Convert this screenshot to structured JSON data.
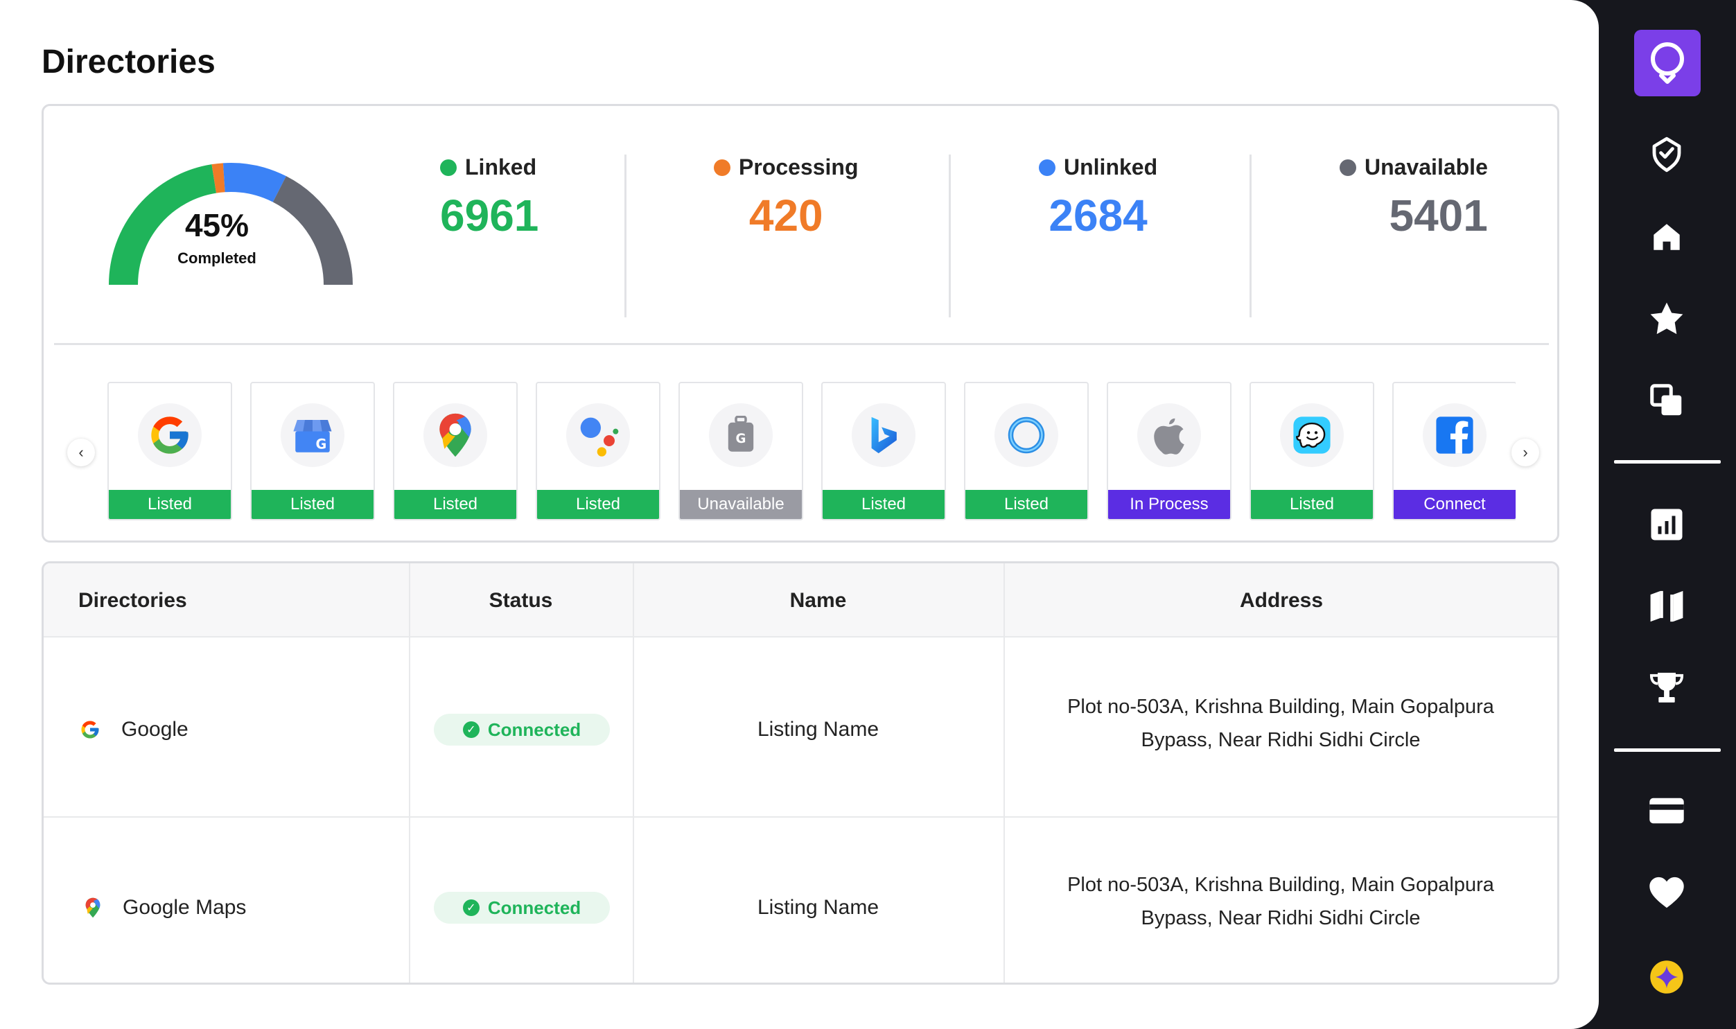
{
  "page": {
    "title": "Directories"
  },
  "colors": {
    "green": "#1fb45a",
    "orange": "#f07b28",
    "blue": "#3b82f6",
    "gray": "#656872",
    "purple": "#5b2de3",
    "unavailable_gray": "#9a9ba3"
  },
  "progress": {
    "percent_value": 45,
    "percent": "45%",
    "label": "Completed",
    "segments": [
      {
        "name": "Linked",
        "share": 0.45,
        "color": "#1fb45a"
      },
      {
        "name": "Processing",
        "share": 0.03,
        "color": "#f07b28"
      },
      {
        "name": "Unlinked",
        "share": 0.17,
        "color": "#3b82f6"
      },
      {
        "name": "Unavailable",
        "share": 0.35,
        "color": "#656872"
      }
    ]
  },
  "stats": [
    {
      "label": "Linked",
      "value": "6961",
      "color": "#1fb45a"
    },
    {
      "label": "Processing",
      "value": "420",
      "color": "#f07b28"
    },
    {
      "label": "Unlinked",
      "value": "2684",
      "color": "#3b82f6"
    },
    {
      "label": "Unavailable",
      "value": "5401",
      "color": "#656872"
    }
  ],
  "carousel": {
    "prev_icon": "chevron-left-icon",
    "next_icon": "chevron-right-icon",
    "tiles": [
      {
        "icon": "google-icon",
        "status": "Listed",
        "color": "#1fb45a"
      },
      {
        "icon": "google-business-icon",
        "status": "Listed",
        "color": "#1fb45a"
      },
      {
        "icon": "google-maps-icon",
        "status": "Listed",
        "color": "#1fb45a"
      },
      {
        "icon": "google-assistant-icon",
        "status": "Listed",
        "color": "#1fb45a"
      },
      {
        "icon": "luggage-icon",
        "status": "Unavailable",
        "color": "#9a9ba3"
      },
      {
        "icon": "bing-icon",
        "status": "Listed",
        "color": "#1fb45a"
      },
      {
        "icon": "cortana-icon",
        "status": "Listed",
        "color": "#1fb45a"
      },
      {
        "icon": "apple-icon",
        "status": "In Process",
        "color": "#5b2de3"
      },
      {
        "icon": "waze-icon",
        "status": "Listed",
        "color": "#1fb45a"
      },
      {
        "icon": "facebook-icon",
        "status": "Connect",
        "color": "#5b2de3"
      }
    ]
  },
  "table": {
    "headers": {
      "directories": "Directories",
      "status": "Status",
      "name": "Name",
      "address": "Address"
    },
    "rows": [
      {
        "directory": "Google",
        "icon": "google-icon",
        "status": "Connected",
        "name": "Listing Name",
        "address_line1": "Plot no-503A, Krishna Building, Main Gopalpura",
        "address_line2": "Bypass, Near Ridhi Sidhi Circle"
      },
      {
        "directory": "Google Maps",
        "icon": "google-maps-icon",
        "status": "Connected",
        "name": "Listing Name",
        "address_line1": "Plot no-503A, Krishna Building, Main Gopalpura",
        "address_line2": "Bypass, Near Ridhi Sidhi Circle"
      }
    ]
  },
  "sidebar": {
    "logo_icon": "location-pin-logo-icon",
    "nav_icons": [
      "badge-check-icon",
      "home-icon",
      "star-icon",
      "copy-icon",
      "bar-chart-icon",
      "map-icon",
      "trophy-icon",
      "credit-card-icon",
      "heart-icon",
      "sparkle-icon"
    ]
  }
}
